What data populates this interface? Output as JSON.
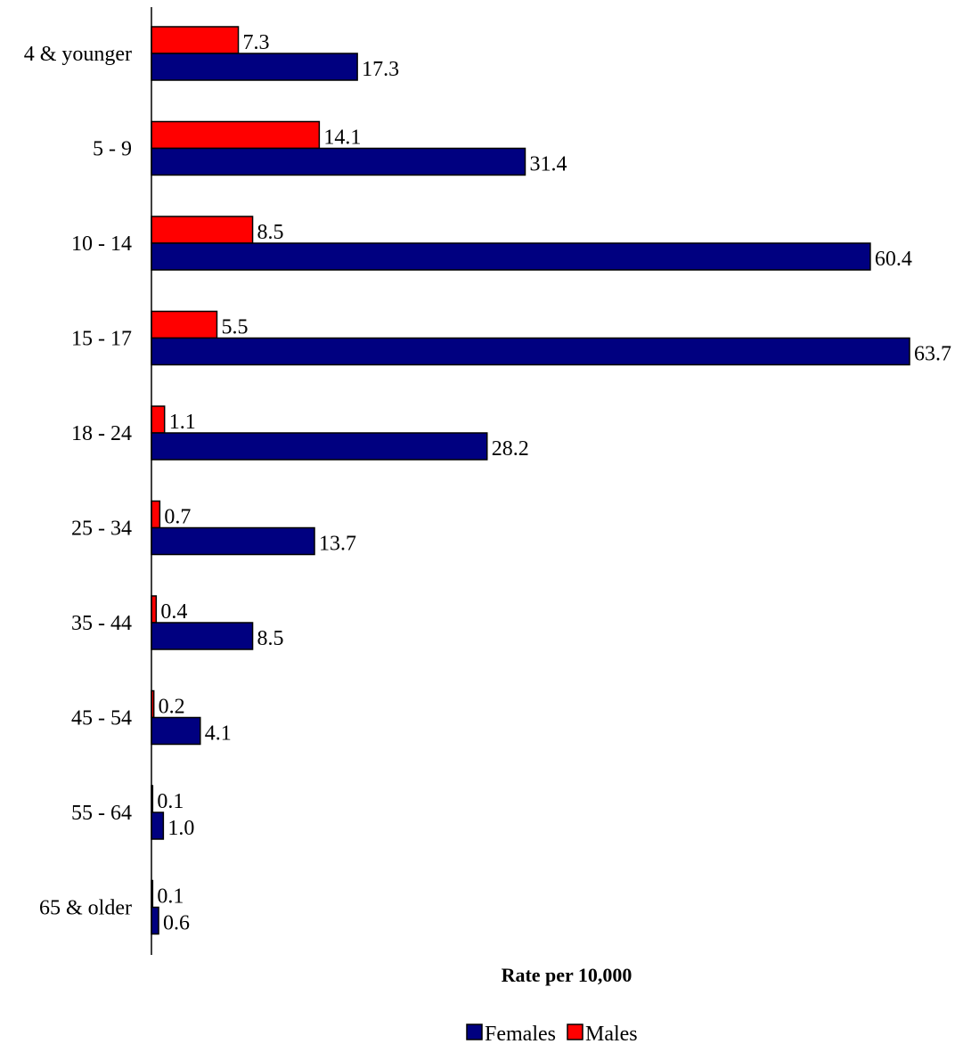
{
  "chart_data": {
    "type": "bar",
    "orientation": "horizontal",
    "categories": [
      "4 & younger",
      "5 - 9",
      "10 - 14",
      "15 - 17",
      "18 - 24",
      "25 - 34",
      "35 - 44",
      "45 - 54",
      "55 - 64",
      "65 & older"
    ],
    "series": [
      {
        "name": "Males",
        "color": "#ff0000",
        "values": [
          7.3,
          14.1,
          8.5,
          5.5,
          1.1,
          0.7,
          0.4,
          0.2,
          0.1,
          0.1
        ],
        "labels": [
          "7.3",
          "14.1",
          "8.5",
          "5.5",
          "1.1",
          "0.7",
          "0.4",
          "0.2",
          "0.1",
          "0.1"
        ]
      },
      {
        "name": "Females",
        "color": "#000080",
        "values": [
          17.3,
          31.4,
          60.4,
          63.7,
          28.2,
          13.7,
          8.5,
          4.1,
          1.0,
          0.6
        ],
        "labels": [
          "17.3",
          "31.4",
          "60.4",
          "63.7",
          "28.2",
          "13.7",
          "8.5",
          "4.1",
          "1.0",
          "0.6"
        ]
      }
    ],
    "xlabel": "Rate per 10,000",
    "xlim": [
      0,
      63.7
    ],
    "grid": false,
    "legend": {
      "placement": "bottom",
      "entries": [
        {
          "name": "Females",
          "color": "#000080"
        },
        {
          "name": "Males",
          "color": "#ff0000"
        }
      ]
    }
  }
}
